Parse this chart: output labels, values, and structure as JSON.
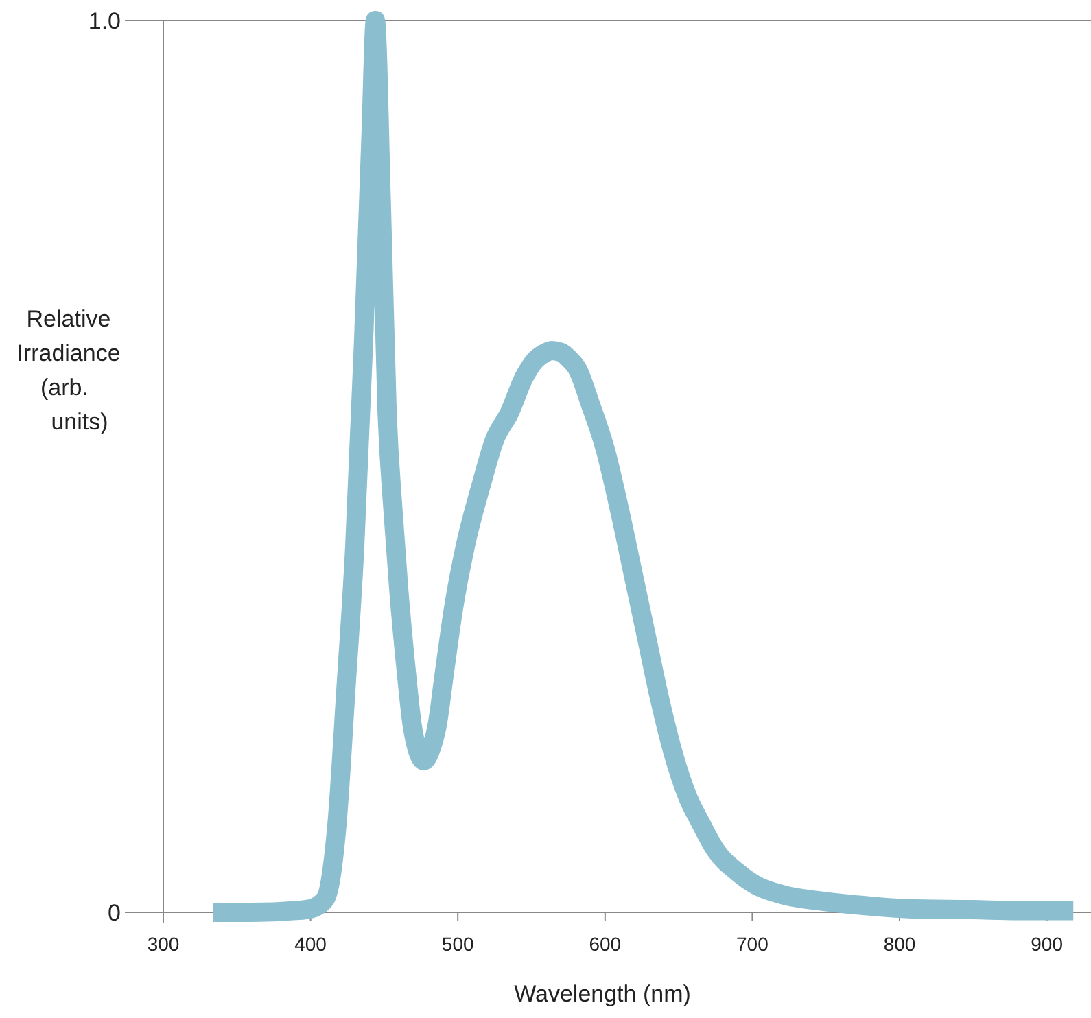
{
  "chart_data": {
    "type": "line",
    "xlabel": "Wavelength (nm)",
    "ylabel": "Relative Irradiance (arb. units)",
    "xlim": [
      300,
      930
    ],
    "xticks": [
      300,
      400,
      500,
      600,
      700,
      800,
      900
    ],
    "ylim": [
      0,
      1
    ],
    "yticks": [
      0,
      {
        "value": 1,
        "label": "1.0"
      }
    ],
    "grid": false,
    "line_style": "solid",
    "series": [
      {
        "color": "#8bbfcf",
        "x": [
          334,
          360,
          390,
          400,
          410,
          418,
          424,
          430,
          436,
          441,
          444,
          448,
          452,
          456,
          460,
          465,
          469,
          473,
          477,
          481,
          486,
          491,
          497,
          505,
          516,
          525,
          535,
          545,
          553,
          559,
          564,
          570,
          576,
          581,
          590,
          600,
          610,
          619,
          628,
          637,
          646,
          656,
          665,
          675,
          690,
          703,
          720,
          750,
          780,
          806,
          850,
          880,
          918
        ],
        "values": [
          0,
          0,
          0.002,
          0.004,
          0.015,
          0.1,
          0.25,
          0.41,
          0.64,
          0.87,
          1.0,
          0.8,
          0.56,
          0.45,
          0.36,
          0.27,
          0.21,
          0.18,
          0.17,
          0.18,
          0.21,
          0.27,
          0.34,
          0.41,
          0.48,
          0.53,
          0.56,
          0.6,
          0.62,
          0.627,
          0.63,
          0.628,
          0.62,
          0.61,
          0.57,
          0.52,
          0.45,
          0.38,
          0.31,
          0.24,
          0.18,
          0.13,
          0.1,
          0.07,
          0.045,
          0.03,
          0.02,
          0.012,
          0.007,
          0.004,
          0.003,
          0.002,
          0.002
        ]
      }
    ]
  }
}
